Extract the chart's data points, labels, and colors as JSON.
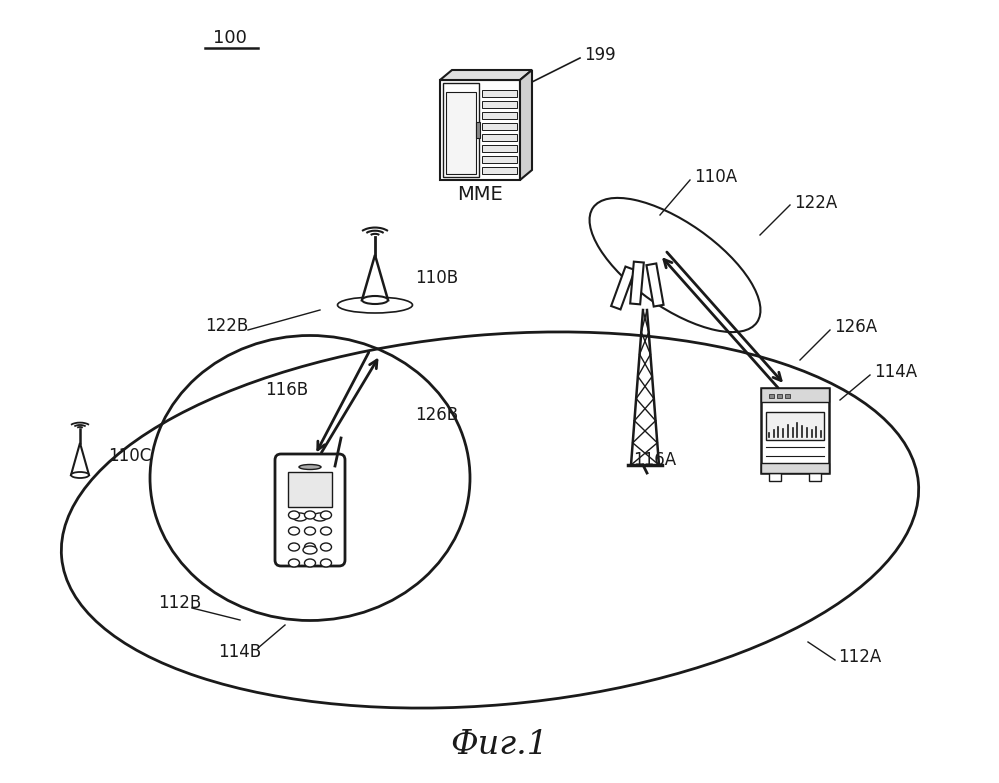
{
  "title": "Фиг.1",
  "label_100": "100",
  "label_199": "199",
  "label_mme": "MME",
  "label_110A": "110A",
  "label_110B": "110B",
  "label_110C": "110C",
  "label_112A": "112A",
  "label_112B": "112B",
  "label_114A": "114A",
  "label_114B": "114B",
  "label_116A": "116A",
  "label_116B": "116B",
  "label_122A": "122A",
  "label_122B": "122B",
  "label_126A": "126A",
  "label_126B": "126B",
  "bg_color": "#ffffff",
  "line_color": "#1a1a1a",
  "fontsize_label": 12,
  "fontsize_title": 24
}
